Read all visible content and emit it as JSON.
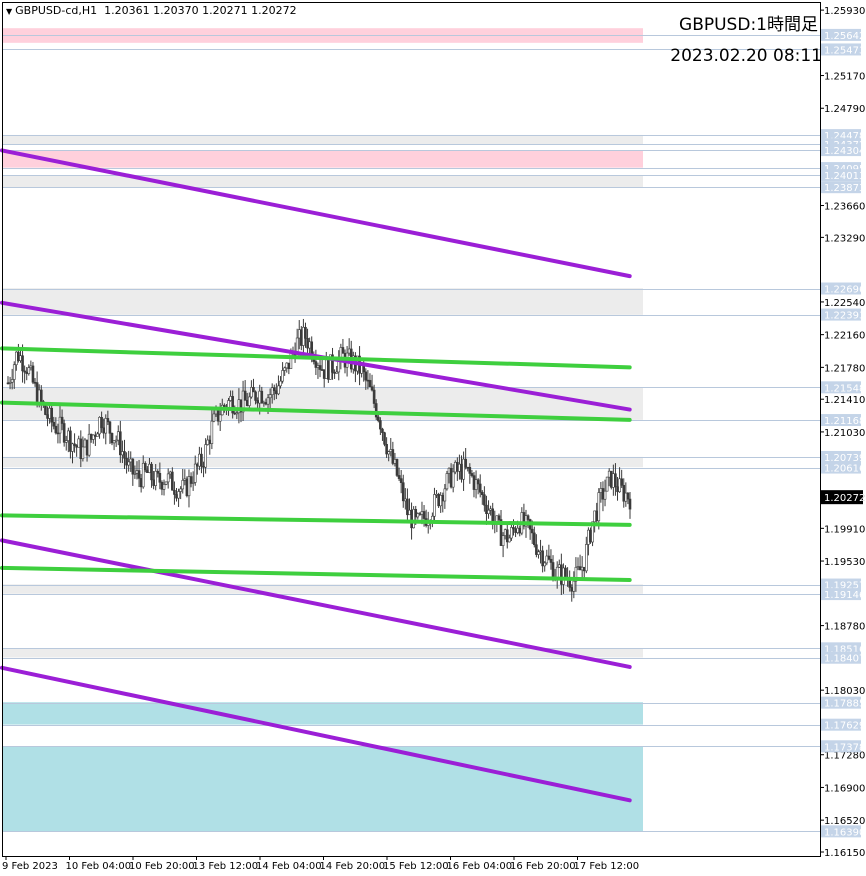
{
  "header": {
    "symbol": "GBPUSD-cd,H1",
    "ohlc": "1.20361 1.20370 1.20271 1.20272"
  },
  "overlay": {
    "title": "GBPUSD:1時間足",
    "datetime": "2023.02.20 08:11"
  },
  "chart_data": {
    "type": "candlestick",
    "symbol": "GBPUSD",
    "timeframe": "H1",
    "title": "GBPUSD:1時間足",
    "ylim": [
      1.1615,
      1.2585
    ],
    "price_ticks": [
      "1.25930",
      "1.25170",
      "1.24790",
      "1.23660",
      "1.23290",
      "1.22540",
      "1.22160",
      "1.21780",
      "1.21410",
      "1.21030",
      "1.20272",
      "1.19910",
      "1.19530",
      "1.18780",
      "1.18030",
      "1.17280",
      "1.16900",
      "1.16520",
      "1.16150"
    ],
    "level_labels": [
      {
        "price": 1.25642,
        "label": "1.25642",
        "color": "#c4d4e8"
      },
      {
        "price": 1.25473,
        "label": "1.25473",
        "color": "#c4d4e8"
      },
      {
        "price": 1.24478,
        "label": "1.24478",
        "color": "#c4d4e8"
      },
      {
        "price": 1.24372,
        "label": "1.24372",
        "color": "#c4d4e8"
      },
      {
        "price": 1.24304,
        "label": "1.24304",
        "color": "#c4d4e8"
      },
      {
        "price": 1.24095,
        "label": "1.24095",
        "color": "#c4d4e8"
      },
      {
        "price": 1.24013,
        "label": "1.24013",
        "color": "#c4d4e8"
      },
      {
        "price": 1.23873,
        "label": "1.23873",
        "color": "#c4d4e8"
      },
      {
        "price": 1.22696,
        "label": "1.22696",
        "color": "#c4d4e8"
      },
      {
        "price": 1.22393,
        "label": "1.22393",
        "color": "#c4d4e8"
      },
      {
        "price": 1.21548,
        "label": "1.21548",
        "color": "#c4d4e8"
      },
      {
        "price": 1.21168,
        "label": "1.21168",
        "color": "#c4d4e8"
      },
      {
        "price": 1.20739,
        "label": "1.20739",
        "color": "#c4d4e8"
      },
      {
        "price": 1.20616,
        "label": "1.20616",
        "color": "#c4d4e8"
      },
      {
        "price": 1.19257,
        "label": "1.19257",
        "color": "#c4d4e8"
      },
      {
        "price": 1.19146,
        "label": "1.19146",
        "color": "#c4d4e8"
      },
      {
        "price": 1.18516,
        "label": "1.18516",
        "color": "#c4d4e8"
      },
      {
        "price": 1.18407,
        "label": "1.18407",
        "color": "#c4d4e8"
      },
      {
        "price": 1.17885,
        "label": "1.17885",
        "color": "#c4d4e8"
      },
      {
        "price": 1.17629,
        "label": "1.17629",
        "color": "#c4d4e8"
      },
      {
        "price": 1.17378,
        "label": "1.17378",
        "color": "#c4d4e8"
      },
      {
        "price": 1.1639,
        "label": "1.16390",
        "color": "#c4d4e8"
      }
    ],
    "current_price": {
      "price": 1.20272,
      "label": "1.20272"
    },
    "time_labels": [
      "9 Feb 2023",
      "10 Feb 04:00",
      "10 Feb 20:00",
      "13 Feb 12:00",
      "14 Feb 04:00",
      "14 Feb 20:00",
      "15 Feb 12:00",
      "16 Feb 04:00",
      "16 Feb 20:00",
      "17 Feb 12:00"
    ],
    "zones": [
      {
        "kind": "supply",
        "top": 1.2572,
        "bottom": 1.2555,
        "color": "#ffd0dc"
      },
      {
        "kind": "neutral",
        "top": 1.2448,
        "bottom": 1.2437,
        "color": "#ececec"
      },
      {
        "kind": "supply",
        "top": 1.243,
        "bottom": 1.241,
        "color": "#ffd0dc"
      },
      {
        "kind": "neutral",
        "top": 1.2401,
        "bottom": 1.2387,
        "color": "#ececec"
      },
      {
        "kind": "neutral",
        "top": 1.227,
        "bottom": 1.2239,
        "color": "#ececec"
      },
      {
        "kind": "neutral",
        "top": 1.2155,
        "bottom": 1.2117,
        "color": "#ececec"
      },
      {
        "kind": "neutral",
        "top": 1.2074,
        "bottom": 1.2062,
        "color": "#ececec"
      },
      {
        "kind": "neutral",
        "top": 1.1926,
        "bottom": 1.1915,
        "color": "#ececec"
      },
      {
        "kind": "neutral",
        "top": 1.1852,
        "bottom": 1.1841,
        "color": "#ececec"
      },
      {
        "kind": "demand",
        "top": 1.1789,
        "bottom": 1.1763,
        "color": "#b0e0e6"
      },
      {
        "kind": "demand",
        "top": 1.1738,
        "bottom": 1.1639,
        "color": "#b0e0e6"
      }
    ],
    "trendlines": [
      {
        "color": "#9b1fd6",
        "from": [
          0,
          1.243
        ],
        "to": [
          0.98,
          1.2284
        ]
      },
      {
        "color": "#9b1fd6",
        "from": [
          0,
          1.2253
        ],
        "to": [
          0.98,
          1.2129
        ]
      },
      {
        "color": "#9b1fd6",
        "from": [
          0,
          1.1977
        ],
        "to": [
          0.98,
          1.183
        ]
      },
      {
        "color": "#9b1fd6",
        "from": [
          0,
          1.1829
        ],
        "to": [
          0.98,
          1.1675
        ]
      },
      {
        "color": "#3ecf3e",
        "from": [
          0,
          1.22
        ],
        "to": [
          0.98,
          1.2178
        ]
      },
      {
        "color": "#3ecf3e",
        "from": [
          0,
          1.2137
        ],
        "to": [
          0.98,
          1.2117
        ]
      },
      {
        "color": "#3ecf3e",
        "from": [
          0,
          1.2006
        ],
        "to": [
          0.98,
          1.1995
        ]
      },
      {
        "color": "#3ecf3e",
        "from": [
          0,
          1.1945
        ],
        "to": [
          0.98,
          1.1931
        ]
      }
    ],
    "price_path": [
      1.216,
      1.2195,
      1.218,
      1.215,
      1.2125,
      1.211,
      1.2105,
      1.209,
      1.208,
      1.2095,
      1.212,
      1.2105,
      1.209,
      1.206,
      1.205,
      1.2055,
      1.2045,
      1.205,
      1.204,
      1.2035,
      1.2055,
      1.207,
      1.211,
      1.213,
      1.214,
      1.2135,
      1.214,
      1.215,
      1.2145,
      1.2155,
      1.2175,
      1.2205,
      1.2215,
      1.2195,
      1.2175,
      1.218,
      1.219,
      1.2185,
      1.2175,
      1.215,
      1.212,
      1.208,
      1.205,
      1.201,
      1.1995,
      1.2005,
      1.202,
      1.204,
      1.2055,
      1.206,
      1.205,
      1.203,
      1.201,
      1.1985,
      1.198,
      1.2,
      1.199,
      1.197,
      1.1955,
      1.194,
      1.1935,
      1.193,
      1.195,
      1.2,
      1.203,
      1.205,
      1.2035,
      1.2027
    ]
  }
}
